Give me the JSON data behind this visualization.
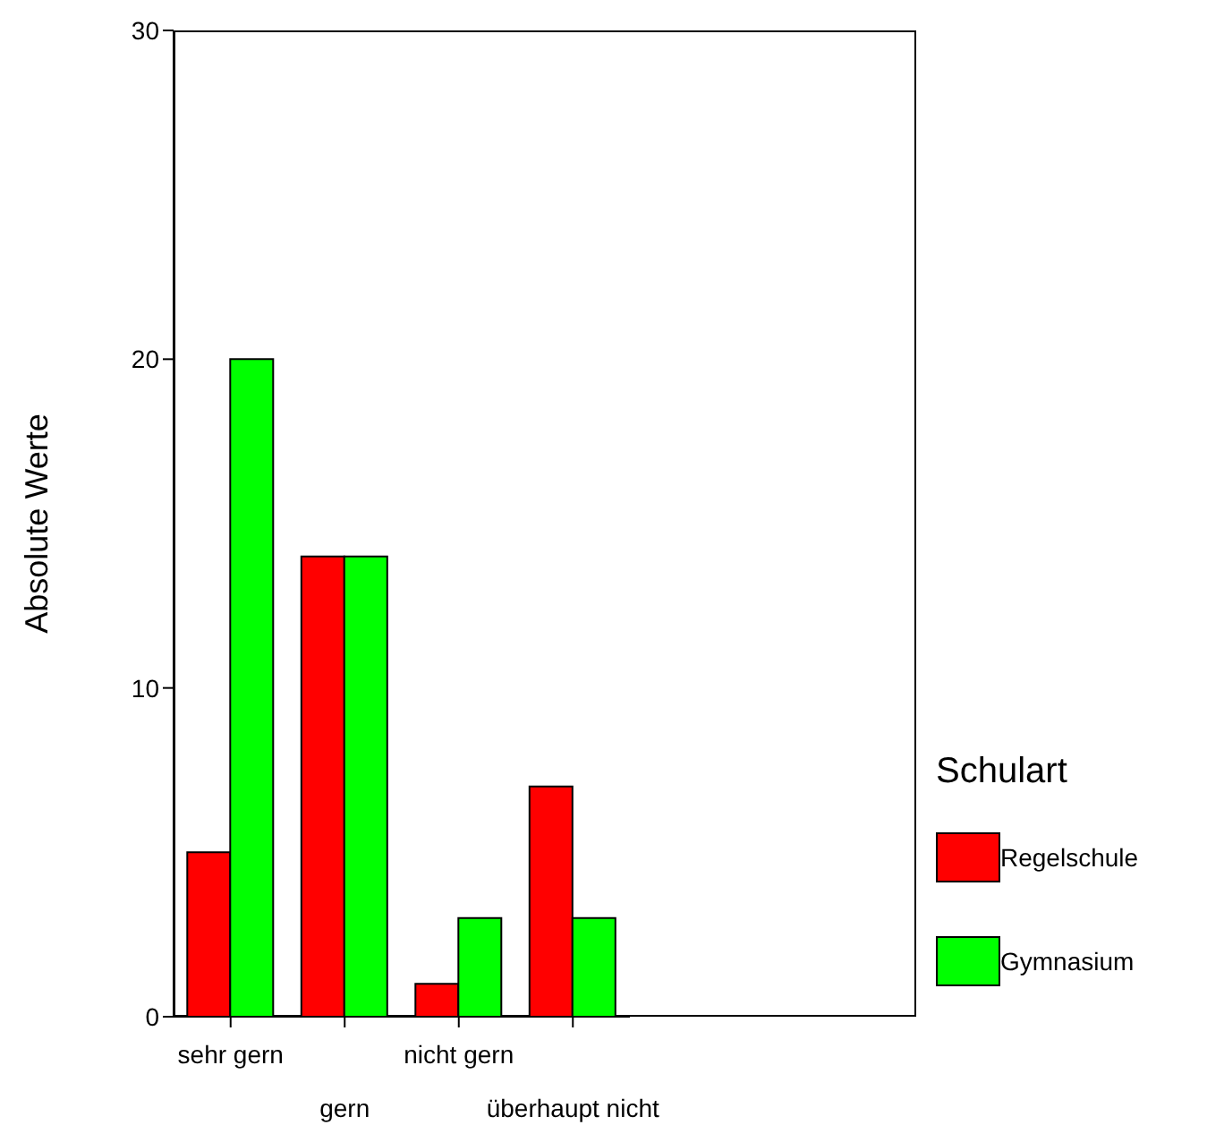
{
  "chart_data": {
    "type": "bar",
    "ylabel": "Absolute Werte",
    "legend_title": "Schulart",
    "categories": [
      "sehr gern",
      "gern",
      "nicht gern",
      "überhaupt nicht"
    ],
    "series": [
      {
        "name": "Regelschule",
        "color": "#ff0000",
        "values": [
          5,
          14,
          1,
          7
        ]
      },
      {
        "name": "Gymnasium",
        "color": "#00ff00",
        "values": [
          20,
          14,
          3,
          3
        ]
      }
    ],
    "ylim": [
      0,
      30
    ],
    "yticks": [
      0,
      10,
      20,
      30
    ],
    "grid": false,
    "legend": "right"
  }
}
